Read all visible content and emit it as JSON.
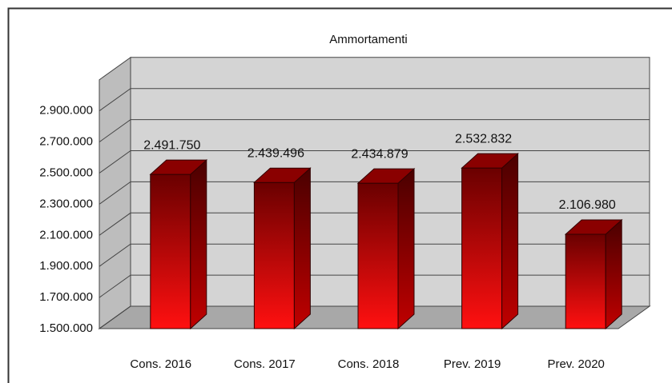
{
  "chart_data": {
    "type": "bar3d",
    "title": "Ammortamenti",
    "categories": [
      "Cons. 2016",
      "Cons. 2017",
      "Cons. 2018",
      "Prev. 2019",
      "Prev. 2020"
    ],
    "values": [
      2491750,
      2439496,
      2434879,
      2532832,
      2106980
    ],
    "value_labels": [
      "2.491.750",
      "2.439.496",
      "2.434.879",
      "2.532.832",
      "2.106.980"
    ],
    "color": "#e00000",
    "ylim": [
      1500000,
      3100000
    ],
    "yticks": [
      {
        "value": 1500000,
        "label": "1.500.000"
      },
      {
        "value": 1700000,
        "label": "1.700.000"
      },
      {
        "value": 1900000,
        "label": "1.900.000"
      },
      {
        "value": 2100000,
        "label": "2.100.000"
      },
      {
        "value": 2300000,
        "label": "2.300.000"
      },
      {
        "value": 2500000,
        "label": "2.500.000"
      },
      {
        "value": 2700000,
        "label": "2.700.000"
      },
      {
        "value": 2900000,
        "label": "2.900.000"
      }
    ],
    "grid": true
  }
}
